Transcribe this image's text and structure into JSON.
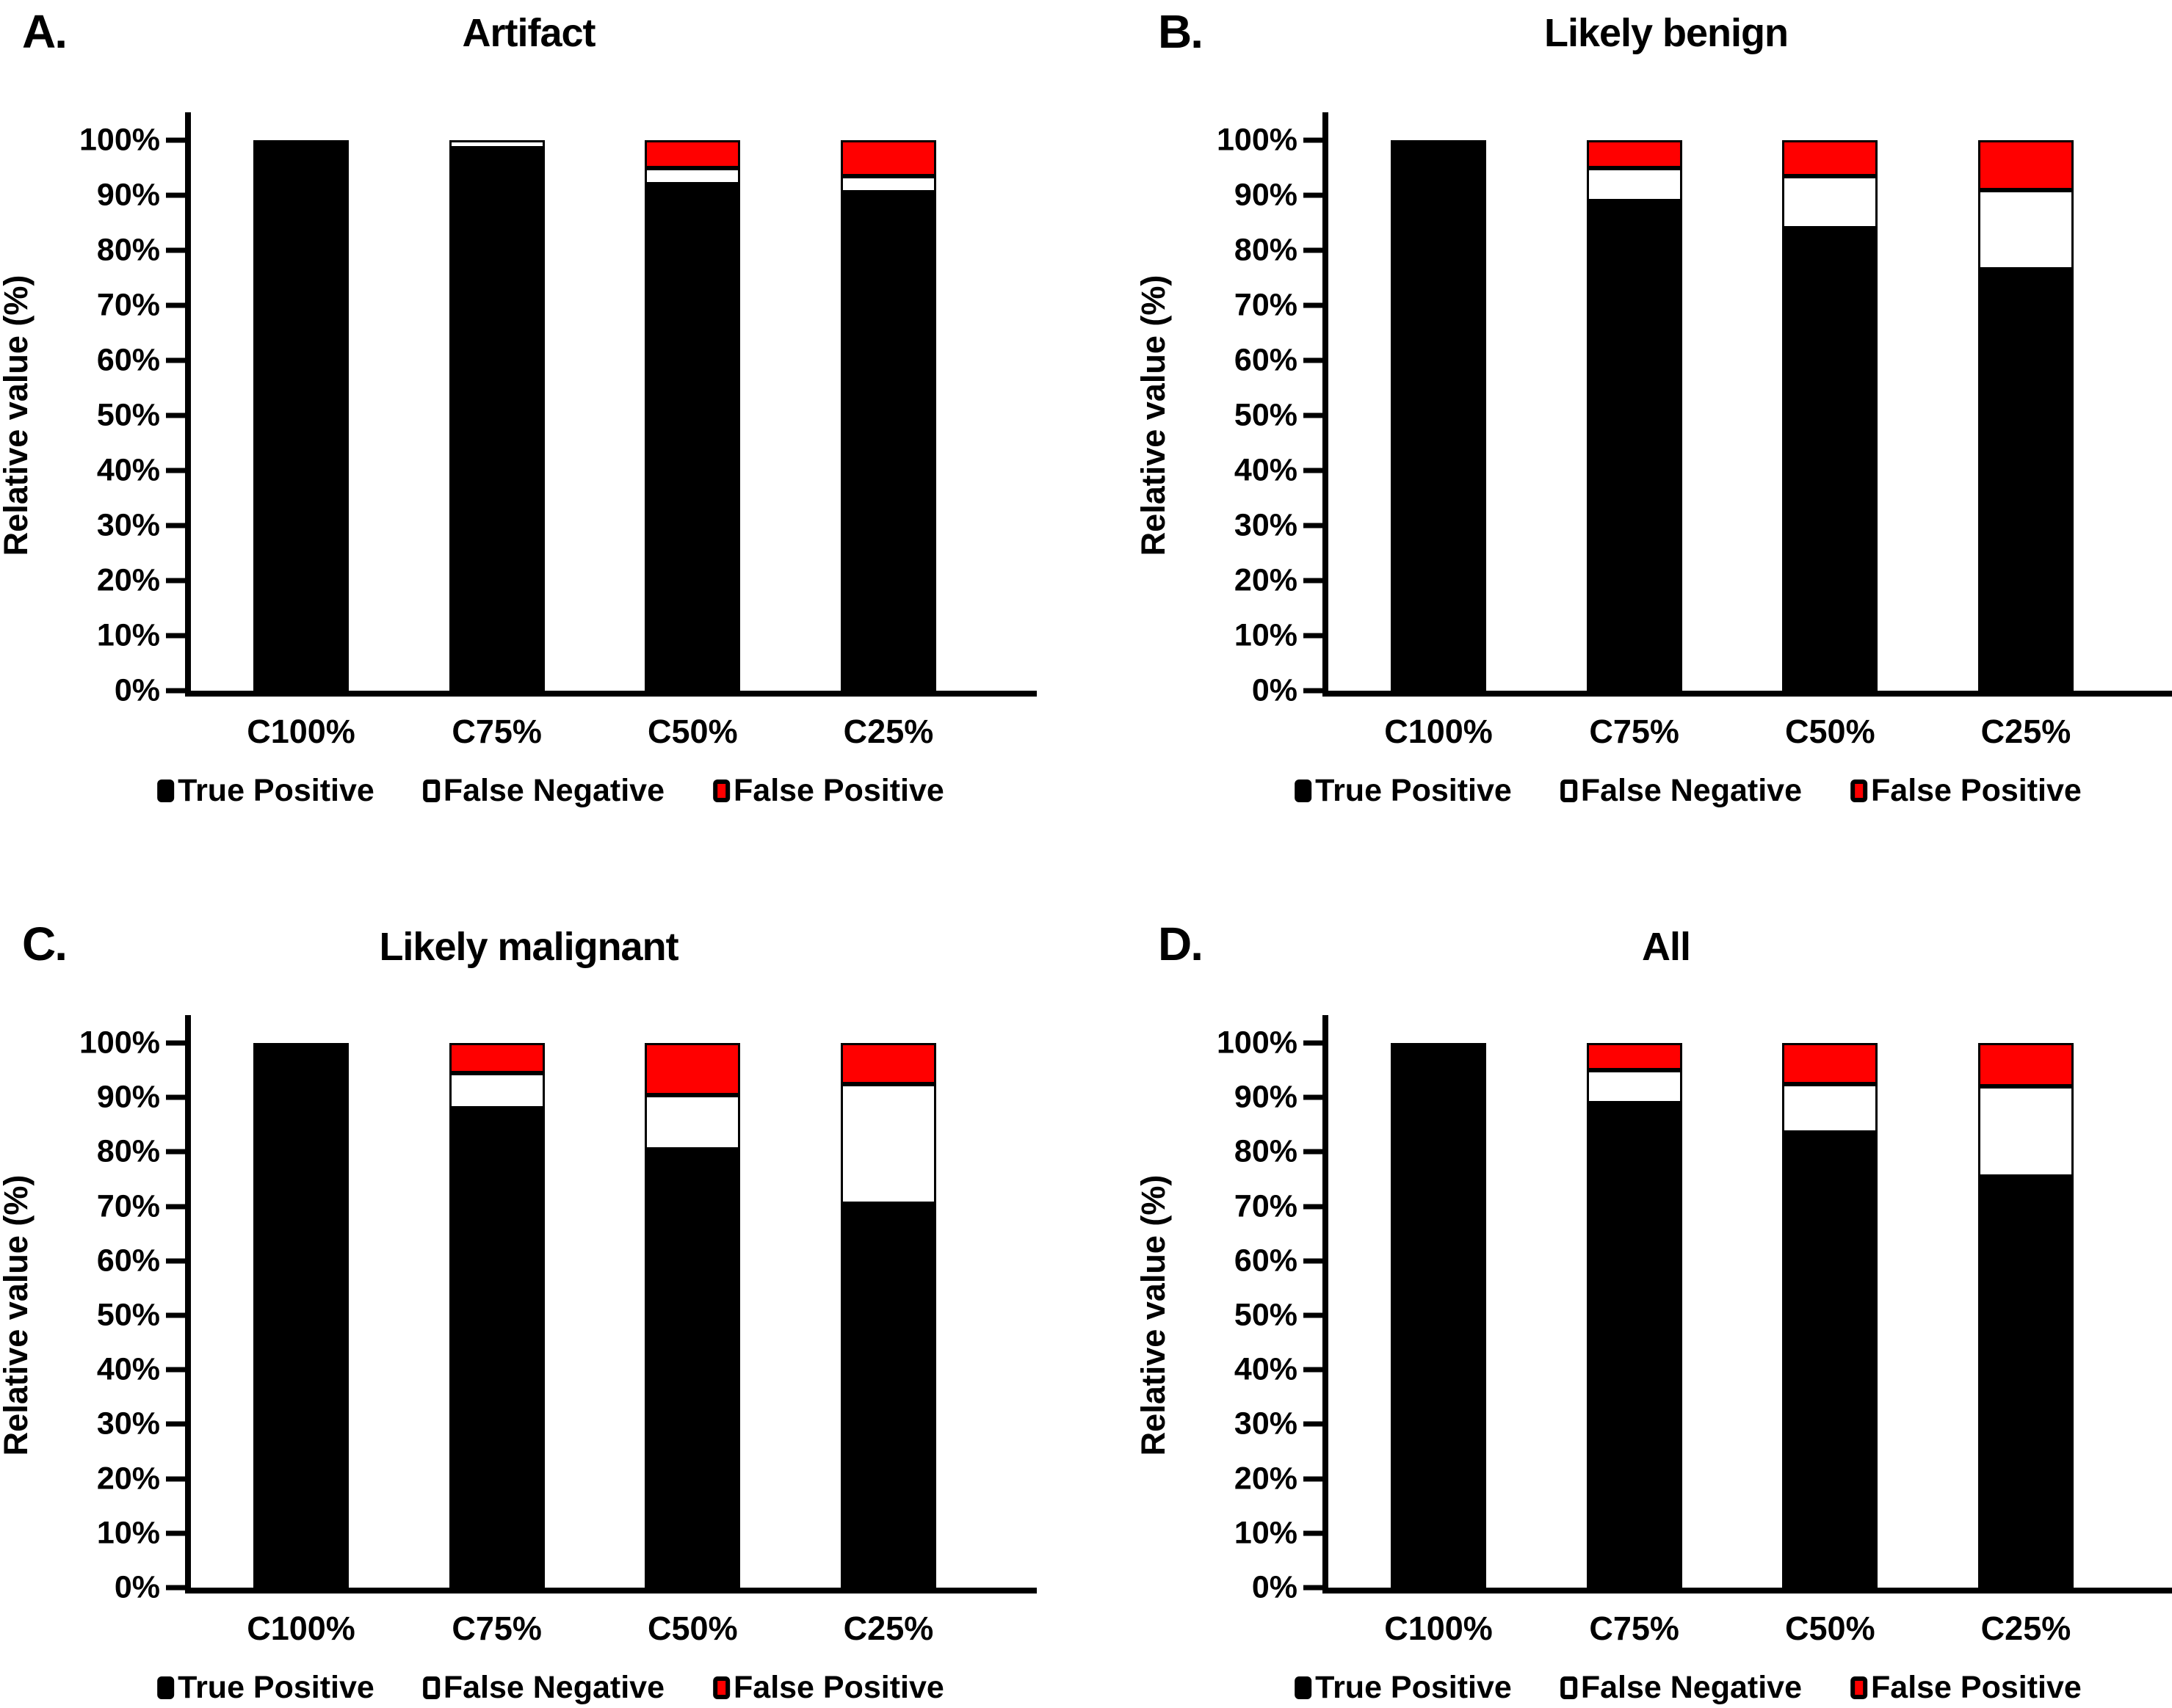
{
  "background": "#FFFFFF",
  "colors": {
    "true_positive": "#000000",
    "false_negative": "#FFFFFF",
    "false_positive": "#FF0000",
    "axis": "#000000"
  },
  "axis": {
    "ylabel": "Relative value (%)",
    "yticks_top_to_bottom": [
      "100%",
      "90%",
      "80%",
      "70%",
      "60%",
      "50%",
      "40%",
      "30%",
      "20%",
      "10%",
      "0%"
    ],
    "categories": [
      "C100%",
      "C75%",
      "C50%",
      "C25%"
    ]
  },
  "legend": [
    {
      "label": "True Positive",
      "color": "#000000"
    },
    {
      "label": "False Negative",
      "color": "#FFFFFF"
    },
    {
      "label": "False Positive",
      "color": "#FF0000"
    }
  ],
  "chart_data": [
    {
      "type": "bar",
      "stacked": true,
      "panel_letter": "A.",
      "title": "Artifact",
      "categories": [
        "C100%",
        "C75%",
        "C50%",
        "C25%"
      ],
      "ylabel": "Relative value (%)",
      "ylim": [
        0,
        100
      ],
      "grid": false,
      "legend_position": "bottom",
      "series": [
        {
          "name": "True Positive",
          "color": "#000000",
          "values": [
            100,
            98.5,
            92,
            90.5
          ]
        },
        {
          "name": "False Negative",
          "color": "#FFFFFF",
          "values": [
            0,
            1.5,
            3,
            3
          ]
        },
        {
          "name": "False Positive",
          "color": "#FF0000",
          "values": [
            0,
            0,
            5,
            6.5
          ]
        }
      ]
    },
    {
      "type": "bar",
      "stacked": true,
      "panel_letter": "B.",
      "title": "Likely benign",
      "categories": [
        "C100%",
        "C75%",
        "C50%",
        "C25%"
      ],
      "ylabel": "Relative value (%)",
      "ylim": [
        0,
        100
      ],
      "grid": false,
      "legend_position": "bottom",
      "series": [
        {
          "name": "True Positive",
          "color": "#000000",
          "values": [
            100,
            89,
            84,
            76.5
          ]
        },
        {
          "name": "False Negative",
          "color": "#FFFFFF",
          "values": [
            0,
            6,
            9.5,
            14.5
          ]
        },
        {
          "name": "False Positive",
          "color": "#FF0000",
          "values": [
            0,
            5,
            6.5,
            9
          ]
        }
      ]
    },
    {
      "type": "bar",
      "stacked": true,
      "panel_letter": "C.",
      "title": "Likely malignant",
      "categories": [
        "C100%",
        "C75%",
        "C50%",
        "C25%"
      ],
      "ylabel": "Relative value (%)",
      "ylim": [
        0,
        100
      ],
      "grid": false,
      "legend_position": "bottom",
      "series": [
        {
          "name": "True Positive",
          "color": "#000000",
          "values": [
            100,
            88,
            80.5,
            70.5
          ]
        },
        {
          "name": "False Negative",
          "color": "#FFFFFF",
          "values": [
            0,
            6.5,
            10,
            22
          ]
        },
        {
          "name": "False Positive",
          "color": "#FF0000",
          "values": [
            0,
            5.5,
            9.5,
            7.5
          ]
        }
      ]
    },
    {
      "type": "bar",
      "stacked": true,
      "panel_letter": "D.",
      "title": "All",
      "categories": [
        "C100%",
        "C75%",
        "C50%",
        "C25%"
      ],
      "ylabel": "Relative value (%)",
      "ylim": [
        0,
        100
      ],
      "grid": false,
      "legend_position": "bottom",
      "series": [
        {
          "name": "True Positive",
          "color": "#000000",
          "values": [
            100,
            89,
            83.5,
            75.5
          ]
        },
        {
          "name": "False Negative",
          "color": "#FFFFFF",
          "values": [
            0,
            6,
            9,
            16.5
          ]
        },
        {
          "name": "False Positive",
          "color": "#FF0000",
          "values": [
            0,
            5,
            7.5,
            8
          ]
        }
      ]
    }
  ]
}
